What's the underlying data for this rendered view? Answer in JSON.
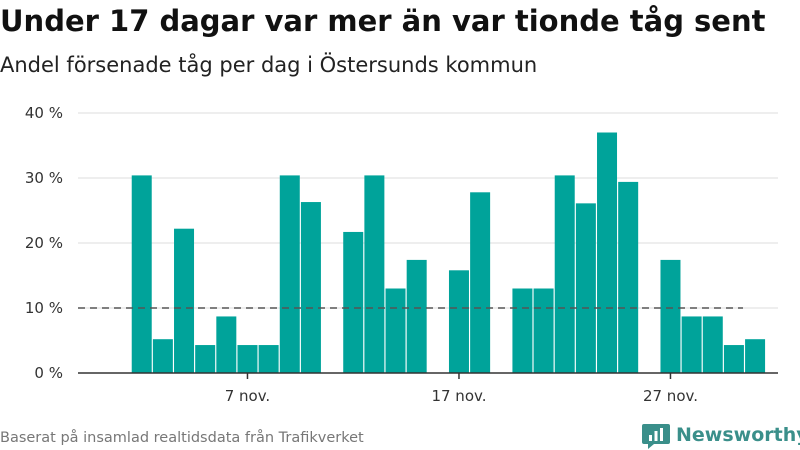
{
  "title": "Under 17 dagar var mer än var tionde tåg sent",
  "subtitle": "Andel försenade tåg per dag i Östersunds kommun",
  "footer": {
    "source": "Baserat på insamlad realtidsdata från Trafikverket",
    "brand": "Newsworthy"
  },
  "chart_data": {
    "type": "bar",
    "x_unit": "day of month (November)",
    "x": [
      2,
      3,
      4,
      5,
      6,
      7,
      8,
      9,
      10,
      12,
      13,
      14,
      15,
      17,
      18,
      20,
      21,
      22,
      23,
      24,
      25,
      27,
      28,
      29,
      30,
      31
    ],
    "values": [
      30.4,
      5.2,
      22.2,
      4.3,
      8.7,
      4.3,
      4.3,
      30.4,
      26.3,
      21.7,
      30.4,
      13.0,
      17.4,
      15.8,
      27.8,
      13.0,
      13.0,
      30.4,
      26.1,
      37.0,
      29.4,
      17.4,
      8.7,
      8.7,
      4.3,
      5.2
    ],
    "xlim": [
      0.5,
      33
    ],
    "ylim": [
      0,
      40
    ],
    "y_ticks": [
      0,
      10,
      20,
      30,
      40
    ],
    "y_tick_labels": [
      "0 %",
      "10 %",
      "20 %",
      "30 %",
      "40 %"
    ],
    "x_ticks": [
      7,
      17,
      27
    ],
    "x_tick_labels": [
      "7 nov.",
      "17 nov.",
      "27 nov."
    ],
    "reference_line": 10,
    "bar_color": "#00a39a",
    "grid": true
  }
}
